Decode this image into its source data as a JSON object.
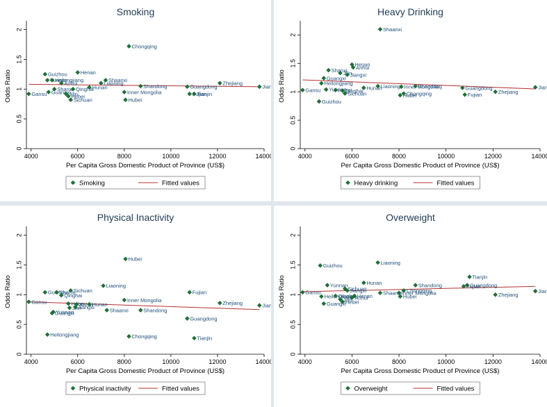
{
  "chart_data": [
    {
      "type": "scatter",
      "title": "Smoking",
      "xlabel": "Per Capita Gross Domestic Product of Province (US$)",
      "ylabel": "Odds Ratio",
      "xlim": [
        3800,
        14000
      ],
      "ylim": [
        0,
        2.1
      ],
      "xticks": [
        4000,
        6000,
        8000,
        10000,
        12000,
        14000
      ],
      "yticks": [
        0,
        0.5,
        1,
        1.5,
        2
      ],
      "legend": [
        "Smoking",
        "Fitted values"
      ],
      "fit": {
        "x": [
          3900,
          13800
        ],
        "y": [
          1.08,
          1.04
        ]
      },
      "points": [
        {
          "label": "Gansu",
          "x": 3900,
          "y": 0.92
        },
        {
          "label": "Guizhou",
          "x": 4600,
          "y": 1.25
        },
        {
          "label": "Yunnan",
          "x": 4700,
          "y": 1.15
        },
        {
          "label": "Guangxi",
          "x": 4750,
          "y": 0.95
        },
        {
          "label": "Heilongjiang",
          "x": 4900,
          "y": 1.15
        },
        {
          "label": "Shanxi",
          "x": 5000,
          "y": 1.0
        },
        {
          "label": "Anhui",
          "x": 5300,
          "y": 1.1
        },
        {
          "label": "Jilin",
          "x": 5500,
          "y": 0.92
        },
        {
          "label": "Hebei",
          "x": 5600,
          "y": 0.88
        },
        {
          "label": "Sichuan",
          "x": 5700,
          "y": 0.82
        },
        {
          "label": "Qinghai",
          "x": 5800,
          "y": 1.0
        },
        {
          "label": "Henan",
          "x": 6000,
          "y": 1.28
        },
        {
          "label": "Hunan",
          "x": 6500,
          "y": 1.03
        },
        {
          "label": "Liaoning",
          "x": 7000,
          "y": 1.1
        },
        {
          "label": "Shaanxi",
          "x": 7200,
          "y": 1.15
        },
        {
          "label": "Chongqing",
          "x": 8200,
          "y": 1.72
        },
        {
          "label": "Inner Mongolia",
          "x": 8000,
          "y": 0.95
        },
        {
          "label": "Hubei",
          "x": 8050,
          "y": 0.82
        },
        {
          "label": "Shandong",
          "x": 8700,
          "y": 1.05
        },
        {
          "label": "Guangdong",
          "x": 10700,
          "y": 1.04
        },
        {
          "label": "Fujian",
          "x": 10800,
          "y": 0.92
        },
        {
          "label": "Tianjin",
          "x": 11000,
          "y": 0.92
        },
        {
          "label": "Zhejiang",
          "x": 12100,
          "y": 1.1
        },
        {
          "label": "Jiangsu",
          "x": 13800,
          "y": 1.04
        }
      ]
    },
    {
      "type": "scatter",
      "title": "Heavy Drinking",
      "xlabel": "Per Capita Gross Domestic Product of Province (US$)",
      "ylabel": "Odds Ratio",
      "xlim": [
        3800,
        14000
      ],
      "ylim": [
        0,
        2.2
      ],
      "xticks": [
        4000,
        6000,
        8000,
        10000,
        12000,
        14000
      ],
      "yticks": [
        0,
        0.5,
        1,
        1.5,
        2
      ],
      "legend": [
        "Heavy drinking",
        "Fitted values"
      ],
      "fit": {
        "x": [
          3900,
          13800
        ],
        "y": [
          1.21,
          1.05
        ]
      },
      "points": [
        {
          "label": "Gansu",
          "x": 3900,
          "y": 1.03
        },
        {
          "label": "Guizhou",
          "x": 4600,
          "y": 0.83
        },
        {
          "label": "Heilongjiang",
          "x": 4700,
          "y": 1.15
        },
        {
          "label": "Guangxi",
          "x": 4800,
          "y": 1.24
        },
        {
          "label": "Yunnan",
          "x": 4900,
          "y": 1.04
        },
        {
          "label": "Shanxi",
          "x": 5000,
          "y": 1.38
        },
        {
          "label": "Hebei",
          "x": 5300,
          "y": 1.03
        },
        {
          "label": "Jilin",
          "x": 5500,
          "y": 1.33
        },
        {
          "label": "Qinghai",
          "x": 5600,
          "y": 1.02
        },
        {
          "label": "Sichuan",
          "x": 5700,
          "y": 0.97
        },
        {
          "label": "Jiangxi",
          "x": 5800,
          "y": 1.3
        },
        {
          "label": "Henan",
          "x": 6000,
          "y": 1.48
        },
        {
          "label": "Anhui",
          "x": 6050,
          "y": 1.43
        },
        {
          "label": "Hunan",
          "x": 6500,
          "y": 1.07
        },
        {
          "label": "Shaanxi",
          "x": 7200,
          "y": 2.1
        },
        {
          "label": "Liaoning",
          "x": 7100,
          "y": 1.1
        },
        {
          "label": "Hubei",
          "x": 8050,
          "y": 0.94
        },
        {
          "label": "Chongqing",
          "x": 8200,
          "y": 0.97
        },
        {
          "label": "Inner Mongolia",
          "x": 8100,
          "y": 1.09
        },
        {
          "label": "Shandong",
          "x": 8700,
          "y": 1.1
        },
        {
          "label": "Guangdong",
          "x": 10700,
          "y": 1.07
        },
        {
          "label": "Fujian",
          "x": 10800,
          "y": 0.95
        },
        {
          "label": "Zhejiang",
          "x": 12100,
          "y": 1.0
        },
        {
          "label": "Jiangsu",
          "x": 13800,
          "y": 1.08
        }
      ]
    },
    {
      "type": "scatter",
      "title": "Physical Inactivity",
      "xlabel": "Per Capita Gross Domestic Product of Province (US$)",
      "ylabel": "Odds Ratio",
      "xlim": [
        3800,
        14000
      ],
      "ylim": [
        0,
        2.1
      ],
      "xticks": [
        4000,
        6000,
        8000,
        10000,
        12000,
        14000
      ],
      "yticks": [
        0,
        0.5,
        1,
        1.5,
        2
      ],
      "legend": [
        "Physical inactivity",
        "Fitted values"
      ],
      "fit": {
        "x": [
          3900,
          13800
        ],
        "y": [
          0.88,
          0.75
        ]
      },
      "points": [
        {
          "label": "Gansu",
          "x": 3900,
          "y": 0.88
        },
        {
          "label": "Heilongjiang",
          "x": 4700,
          "y": 0.33
        },
        {
          "label": "Guizhou",
          "x": 4600,
          "y": 1.04
        },
        {
          "label": "Yunnan",
          "x": 4950,
          "y": 0.71
        },
        {
          "label": "Guangxi",
          "x": 4900,
          "y": 0.69
        },
        {
          "label": "Shanxi",
          "x": 5100,
          "y": 1.04
        },
        {
          "label": "Qinghai",
          "x": 5300,
          "y": 0.99
        },
        {
          "label": "Sichuan",
          "x": 5700,
          "y": 1.07
        },
        {
          "label": "Hebei",
          "x": 5600,
          "y": 0.85
        },
        {
          "label": "Jilin",
          "x": 5650,
          "y": 0.78
        },
        {
          "label": "Jiangxi",
          "x": 5900,
          "y": 0.79
        },
        {
          "label": "Anhui",
          "x": 5950,
          "y": 0.84
        },
        {
          "label": "Hunan",
          "x": 6500,
          "y": 0.84
        },
        {
          "label": "Liaoning",
          "x": 7100,
          "y": 1.15
        },
        {
          "label": "Shaanxi",
          "x": 7250,
          "y": 0.74
        },
        {
          "label": "Hubei",
          "x": 8050,
          "y": 1.6
        },
        {
          "label": "Inner Mongolia",
          "x": 8000,
          "y": 0.91
        },
        {
          "label": "Chongqing",
          "x": 8200,
          "y": 0.3
        },
        {
          "label": "Shandong",
          "x": 8700,
          "y": 0.74
        },
        {
          "label": "Guangdong",
          "x": 10700,
          "y": 0.6
        },
        {
          "label": "Fujian",
          "x": 10800,
          "y": 1.04
        },
        {
          "label": "Tianjin",
          "x": 11000,
          "y": 0.27
        },
        {
          "label": "Zhejiang",
          "x": 12100,
          "y": 0.86
        },
        {
          "label": "Jiangsu",
          "x": 13800,
          "y": 0.82
        }
      ]
    },
    {
      "type": "scatter",
      "title": "Overweight",
      "xlabel": "Per Capita Gross Domestic Product of Province (US$)",
      "ylabel": "Odds Ratio",
      "xlim": [
        3800,
        14000
      ],
      "ylim": [
        0,
        2.1
      ],
      "xticks": [
        4000,
        6000,
        8000,
        10000,
        12000,
        14000
      ],
      "yticks": [
        0,
        0.5,
        1,
        1.5,
        2
      ],
      "legend": [
        "Overweight",
        "Fitted values"
      ],
      "fit": {
        "x": [
          3900,
          13800
        ],
        "y": [
          1.05,
          1.14
        ]
      },
      "points": [
        {
          "label": "Gansu",
          "x": 3900,
          "y": 1.04
        },
        {
          "label": "Guizhou",
          "x": 4650,
          "y": 1.49
        },
        {
          "label": "Heilongjiang",
          "x": 4700,
          "y": 0.97
        },
        {
          "label": "Guangxi",
          "x": 4800,
          "y": 0.85
        },
        {
          "label": "Yunnan",
          "x": 4950,
          "y": 1.16
        },
        {
          "label": "Qinghai",
          "x": 5300,
          "y": 0.98
        },
        {
          "label": "Jilin",
          "x": 5500,
          "y": 0.92
        },
        {
          "label": "Hebei",
          "x": 5600,
          "y": 0.88
        },
        {
          "label": "Sichuan",
          "x": 5700,
          "y": 1.1
        },
        {
          "label": "Jiangxi",
          "x": 5800,
          "y": 1.07
        },
        {
          "label": "Anhui",
          "x": 6000,
          "y": 0.95
        },
        {
          "label": "Henan",
          "x": 6100,
          "y": 0.98
        },
        {
          "label": "Hunan",
          "x": 6500,
          "y": 1.2
        },
        {
          "label": "Liaoning",
          "x": 7100,
          "y": 1.54
        },
        {
          "label": "Shaanxi",
          "x": 7200,
          "y": 1.03
        },
        {
          "label": "Inner Mongolia",
          "x": 8000,
          "y": 1.03
        },
        {
          "label": "Hubei",
          "x": 8050,
          "y": 0.97
        },
        {
          "label": "Chongqing",
          "x": 8200,
          "y": 1.07
        },
        {
          "label": "Shandong",
          "x": 8700,
          "y": 1.16
        },
        {
          "label": "Guangdong",
          "x": 10900,
          "y": 1.16
        },
        {
          "label": "Fujian",
          "x": 10750,
          "y": 1.14
        },
        {
          "label": "Tianjin",
          "x": 11000,
          "y": 1.3
        },
        {
          "label": "Zhejiang",
          "x": 12100,
          "y": 1.0
        },
        {
          "label": "Jiangsu",
          "x": 13800,
          "y": 1.06
        }
      ]
    }
  ]
}
